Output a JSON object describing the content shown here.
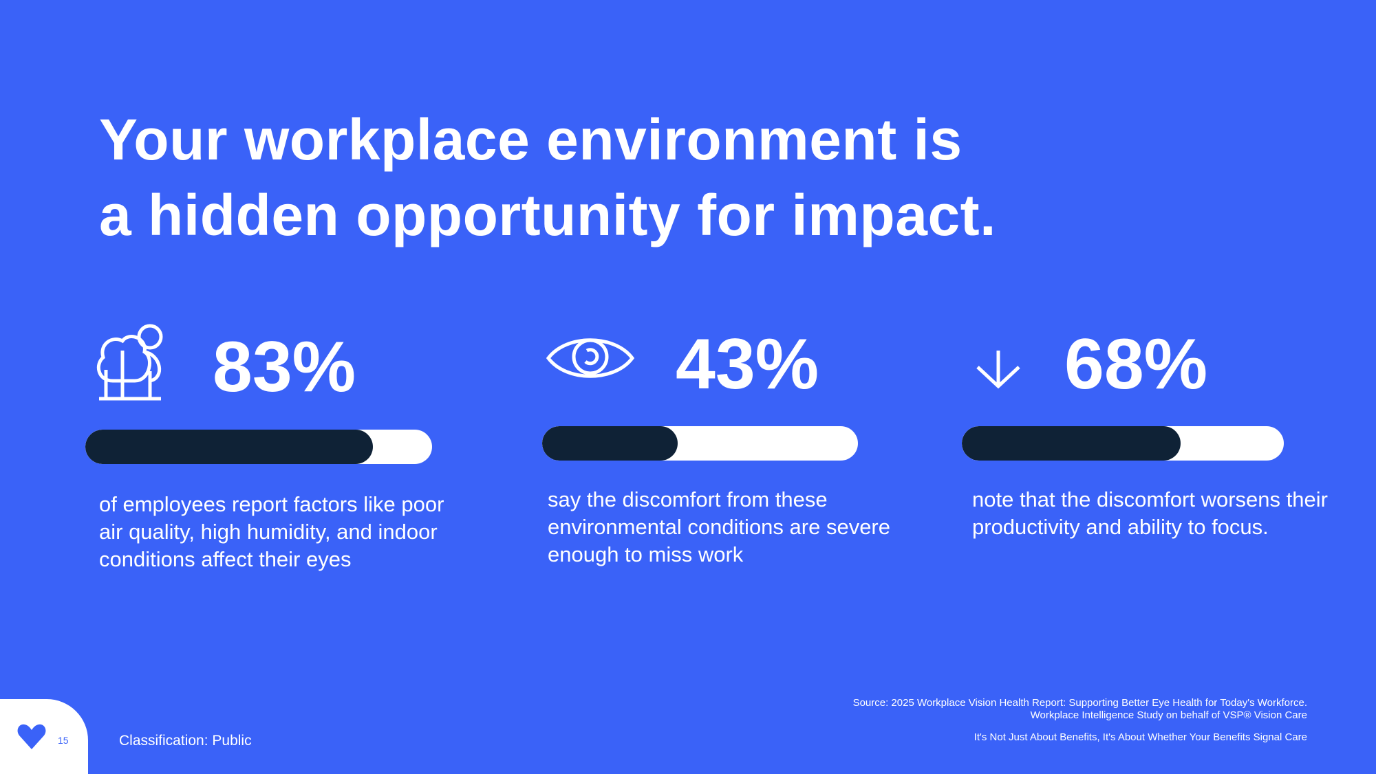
{
  "title_lines": [
    "Your workplace environment is",
    "a hidden opportunity for impact."
  ],
  "stats": [
    {
      "value": 83,
      "value_label": "83%",
      "description": "of employees report factors like poor air quality, high humidity, and indoor conditions affect their eyes"
    },
    {
      "value": 43,
      "value_label": "43%",
      "description": "say the discomfort from these environmental conditions are severe enough to miss work"
    },
    {
      "value": 68,
      "value_label": "68%",
      "description": "note that the discomfort worsens their productivity and ability to focus."
    }
  ],
  "footer": {
    "page_number": "15",
    "classification": "Classification: Public",
    "source": "Source: 2025 Workplace Vision Health Report: Supporting Better Eye Health for Today's Workforce. Workplace Intelligence Study on behalf of VSP® Vision Care",
    "tagline": "It's Not Just About Benefits, It's About Whether Your Benefits Signal Care"
  }
}
